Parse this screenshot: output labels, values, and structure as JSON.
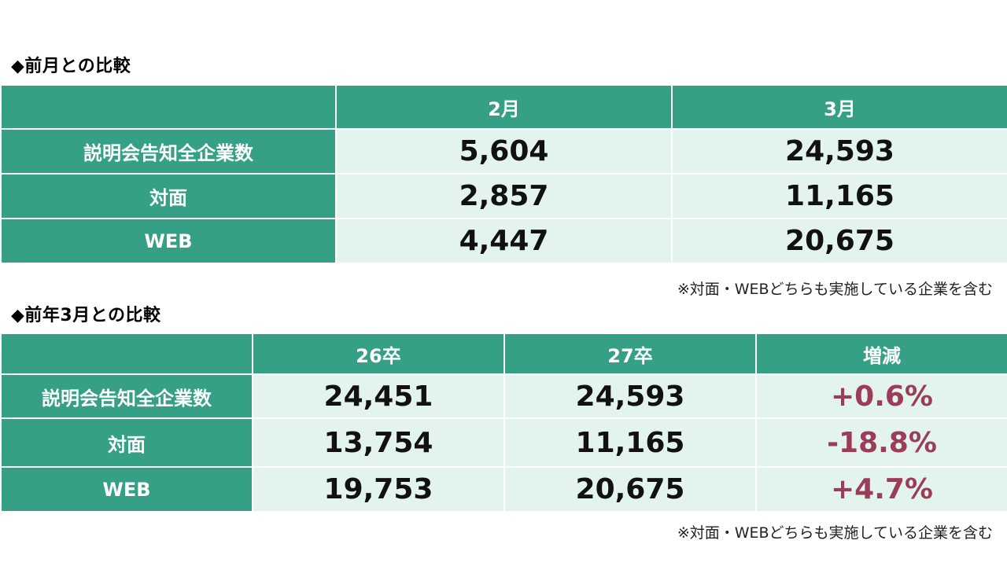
{
  "section1": {
    "title": "◆前月との比較",
    "columns": [
      "",
      "2月",
      "3月"
    ],
    "rows": [
      {
        "label": "説明会告知全企業数",
        "values": [
          "5,604",
          "24,593"
        ]
      },
      {
        "label": "対面",
        "values": [
          "2,857",
          "11,165"
        ]
      },
      {
        "label": "WEB",
        "values": [
          "4,447",
          "20,675"
        ]
      }
    ],
    "note": "※対面・WEBどちらも実施している企業を含む"
  },
  "section2": {
    "title": "◆前年3月との比較",
    "columns": [
      "",
      "26卒",
      "27卒",
      "増減"
    ],
    "rows": [
      {
        "label": "説明会告知全企業数",
        "values": [
          "24,451",
          "24,593",
          "+0.6%"
        ]
      },
      {
        "label": "対面",
        "values": [
          "13,754",
          "11,165",
          "-18.8%"
        ]
      },
      {
        "label": "WEB",
        "values": [
          "19,753",
          "20,675",
          "+4.7%"
        ]
      }
    ],
    "note": "※対面・WEBどちらも実施している企業を含む"
  },
  "colors": {
    "header_green": "#35a085",
    "cell_light": "#e3f4ef",
    "change_text": "#9c3d58"
  }
}
